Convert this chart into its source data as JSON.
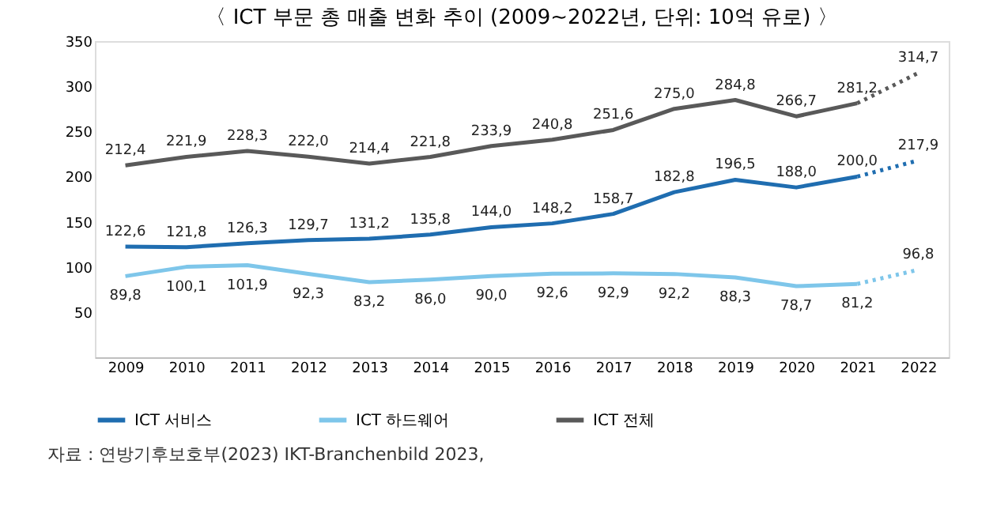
{
  "chart_data": {
    "type": "line",
    "title": "〈 ICT 부문 총 매출 변화 추이 (2009~2022년, 단위: 10억 유로) 〉",
    "categories": [
      "2009",
      "2010",
      "2011",
      "2012",
      "2013",
      "2014",
      "2015",
      "2016",
      "2017",
      "2018",
      "2019",
      "2020",
      "2021",
      "2022"
    ],
    "series": [
      {
        "name": "ICT 서비스",
        "color": "#1f6db0",
        "values": [
          122.6,
          121.8,
          126.3,
          129.7,
          131.2,
          135.8,
          144.0,
          148.2,
          158.7,
          182.8,
          196.5,
          188.0,
          200.0,
          null
        ],
        "value_labels": [
          "122,6",
          "121,8",
          "126,3",
          "129,7",
          "131,2",
          "135,8",
          "144,0",
          "148,2",
          "158,7",
          "182,8",
          "196,5",
          "188,0",
          "200,0",
          null
        ]
      },
      {
        "name": "ICT 하드웨어",
        "color": "#7ec6ea",
        "values": [
          89.8,
          100.1,
          101.9,
          92.3,
          83.2,
          86.0,
          90.0,
          92.6,
          92.9,
          92.2,
          88.3,
          78.7,
          81.2,
          null
        ],
        "value_labels": [
          "89,8",
          "100,1",
          "101,9",
          "92,3",
          "83,2",
          "86,0",
          "90,0",
          "92,6",
          "92,9",
          "92,2",
          "88,3",
          "78,7",
          "81,2",
          null
        ]
      },
      {
        "name": "ICT 전체",
        "color": "#595959",
        "values": [
          212.4,
          221.9,
          228.3,
          222.0,
          214.4,
          221.8,
          233.9,
          240.8,
          251.6,
          275.0,
          284.8,
          266.7,
          281.2,
          null
        ],
        "value_labels": [
          "212,4",
          "221,9",
          "228,3",
          "222,0",
          "214,4",
          "221,8",
          "233,9",
          "240,8",
          "251,6",
          "275,0",
          "284,8",
          "266,7",
          "281,2",
          null
        ]
      },
      {
        "color": "#1f6db0",
        "line_style": "dotted",
        "values": [
          null,
          null,
          null,
          null,
          null,
          null,
          null,
          null,
          null,
          null,
          null,
          null,
          200.0,
          217.9
        ],
        "value_labels": [
          null,
          null,
          null,
          null,
          null,
          null,
          null,
          null,
          null,
          null,
          null,
          null,
          null,
          "217,9"
        ]
      },
      {
        "color": "#7ec6ea",
        "line_style": "dotted",
        "values": [
          null,
          null,
          null,
          null,
          null,
          null,
          null,
          null,
          null,
          null,
          null,
          null,
          81.2,
          96.8
        ],
        "value_labels": [
          null,
          null,
          null,
          null,
          null,
          null,
          null,
          null,
          null,
          null,
          null,
          null,
          null,
          "96,8"
        ]
      },
      {
        "color": "#595959",
        "line_style": "dotted",
        "values": [
          null,
          null,
          null,
          null,
          null,
          null,
          null,
          null,
          null,
          null,
          null,
          null,
          281.2,
          314.7
        ],
        "value_labels": [
          null,
          null,
          null,
          null,
          null,
          null,
          null,
          null,
          null,
          null,
          null,
          null,
          null,
          "314,7"
        ]
      }
    ],
    "ylim": [
      0,
      350
    ],
    "yticks": [
      50,
      100,
      150,
      200,
      250,
      300,
      350
    ],
    "grid": false,
    "legend": "bottom",
    "line_style": "solid",
    "marker": "none",
    "annotations": [
      "자료 : 연방기후보호부(2023) IKT-Branchenbild 2023,"
    ]
  }
}
